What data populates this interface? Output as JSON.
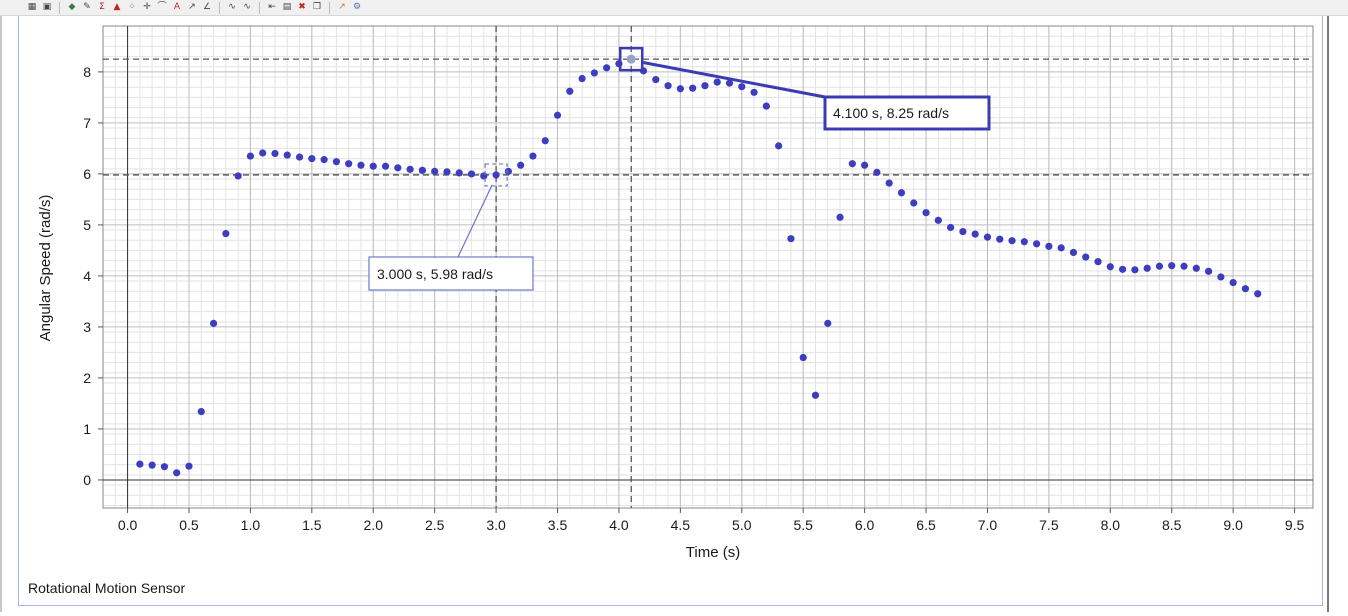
{
  "toolbar": {
    "icons": [
      "graph-options-icon",
      "save-icon",
      "color-icon",
      "highlight-icon",
      "sum-icon",
      "triangle-icon",
      "scatter-icon",
      "crosshair-icon",
      "tangent-icon",
      "text-icon",
      "fit-icon",
      "slope-icon",
      "curve-a-icon",
      "curve-b-icon",
      "select-icon",
      "table-icon",
      "delete-icon",
      "copy-icon",
      "pin-icon",
      "settings-icon"
    ]
  },
  "sensor_label": "Rotational Motion Sensor",
  "colors": {
    "points": "#3d3dbf",
    "callout_border": "#3b3bb3",
    "callout_weak_border": "#6f78c9",
    "grid_major": "#bdbdbd",
    "grid_minor": "#e3e3e3",
    "panel_border": "#a9b5f2"
  },
  "callouts": {
    "a": {
      "text": "3.000 s, 5.98 rad/s",
      "x": 3.0,
      "y": 5.98
    },
    "b": {
      "text": "4.100 s, 8.25 rad/s",
      "x": 4.1,
      "y": 8.25
    }
  },
  "chart_data": {
    "type": "scatter",
    "xlabel": "Time (s)",
    "ylabel": "Angular Speed (rad/s)",
    "xlim": [
      -0.2,
      9.65
    ],
    "ylim": [
      -0.55,
      8.9
    ],
    "grid": true,
    "xticks": [
      "0.0",
      "0.5",
      "1.0",
      "1.5",
      "2.0",
      "2.5",
      "3.0",
      "3.5",
      "4.0",
      "4.5",
      "5.0",
      "5.5",
      "6.0",
      "6.5",
      "7.0",
      "7.5",
      "8.0",
      "8.5",
      "9.0",
      "9.5"
    ],
    "xtick_values": [
      0.0,
      0.5,
      1.0,
      1.5,
      2.0,
      2.5,
      3.0,
      3.5,
      4.0,
      4.5,
      5.0,
      5.5,
      6.0,
      6.5,
      7.0,
      7.5,
      8.0,
      8.5,
      9.0,
      9.5
    ],
    "yticks": [
      "0",
      "1",
      "2",
      "3",
      "4",
      "5",
      "6",
      "7",
      "8"
    ],
    "ytick_values": [
      0,
      1,
      2,
      3,
      4,
      5,
      6,
      7,
      8
    ],
    "x": [
      0.1,
      0.2,
      0.3,
      0.4,
      0.5,
      0.6,
      0.7,
      0.8,
      0.9,
      1.0,
      1.1,
      1.2,
      1.3,
      1.4,
      1.5,
      1.6,
      1.7,
      1.8,
      1.9,
      2.0,
      2.1,
      2.2,
      2.3,
      2.4,
      2.5,
      2.6,
      2.7,
      2.8,
      2.9,
      3.0,
      3.1,
      3.2,
      3.3,
      3.4,
      3.5,
      3.6,
      3.7,
      3.8,
      3.9,
      4.0,
      4.1,
      4.2,
      4.3,
      4.4,
      4.5,
      4.6,
      4.7,
      4.8,
      4.9,
      5.0,
      5.1,
      5.2,
      5.3,
      5.4,
      5.5,
      5.6,
      5.7,
      5.8,
      5.9,
      6.0,
      6.1,
      6.2,
      6.3,
      6.4,
      6.5,
      6.6,
      6.7,
      6.8,
      6.9,
      7.0,
      7.1,
      7.2,
      7.3,
      7.4,
      7.5,
      7.6,
      7.7,
      7.8,
      7.9,
      8.0,
      8.1,
      8.2,
      8.3,
      8.4,
      8.5,
      8.6,
      8.7,
      8.8,
      8.9,
      9.0,
      9.1,
      9.2
    ],
    "y": [
      0.31,
      0.29,
      0.26,
      0.14,
      0.27,
      1.34,
      3.07,
      4.83,
      5.96,
      6.35,
      6.41,
      6.4,
      6.37,
      6.33,
      6.3,
      6.28,
      6.24,
      6.2,
      6.17,
      6.15,
      6.15,
      6.12,
      6.09,
      6.07,
      6.05,
      6.04,
      6.02,
      6.0,
      5.96,
      5.98,
      6.05,
      6.17,
      6.35,
      6.65,
      7.15,
      7.62,
      7.87,
      7.98,
      8.08,
      8.16,
      8.25,
      8.02,
      7.85,
      7.73,
      7.67,
      7.68,
      7.73,
      7.8,
      7.78,
      7.71,
      7.6,
      7.33,
      6.55,
      4.73,
      2.4,
      1.66,
      3.07,
      5.15,
      6.2,
      6.17,
      6.03,
      5.82,
      5.63,
      5.43,
      5.24,
      5.09,
      4.95,
      4.87,
      4.82,
      4.76,
      4.72,
      4.69,
      4.67,
      4.63,
      4.58,
      4.55,
      4.46,
      4.37,
      4.28,
      4.18,
      4.13,
      4.12,
      4.15,
      4.19,
      4.2,
      4.19,
      4.15,
      4.09,
      3.98,
      3.87,
      3.75,
      3.65
    ],
    "crosshairs": [
      {
        "x": 3.0,
        "y": 5.98
      },
      {
        "x": 4.1,
        "y": 8.25
      }
    ]
  }
}
